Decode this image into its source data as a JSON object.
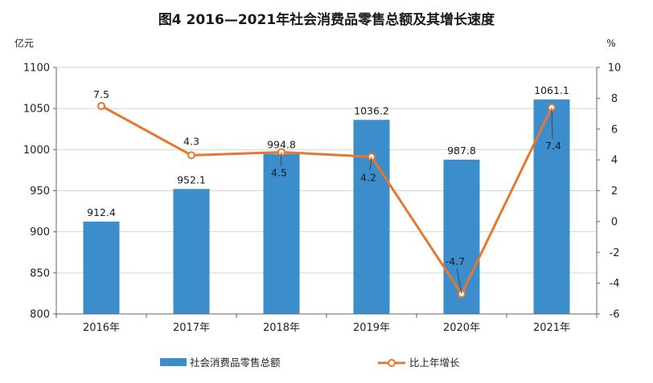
{
  "chart_data": {
    "type": "bar+line",
    "title": "图4  2016—2021年社会消费品零售总额及其增长速度",
    "categories": [
      "2016年",
      "2017年",
      "2018年",
      "2019年",
      "2020年",
      "2021年"
    ],
    "left_axis": {
      "unit": "亿元",
      "ylim": [
        800,
        1100
      ],
      "ticks": [
        800,
        850,
        900,
        950,
        1000,
        1050,
        1100
      ]
    },
    "right_axis": {
      "unit": "%",
      "ylim": [
        -6,
        10
      ],
      "ticks": [
        -6,
        -4,
        -2,
        0,
        2,
        4,
        6,
        8,
        10
      ]
    },
    "series": [
      {
        "name": "社会消费品零售总额",
        "kind": "bar",
        "axis": "left",
        "color": "#3b8ecb",
        "values": [
          912.4,
          952.1,
          994.8,
          1036.2,
          987.8,
          1061.1
        ],
        "labels": [
          "912.4",
          "952.1",
          "994.8",
          "1036.2",
          "987.8",
          "1061.1"
        ]
      },
      {
        "name": "比上年增长",
        "kind": "line",
        "axis": "right",
        "color": "#e8772e",
        "values": [
          7.5,
          4.3,
          4.5,
          4.2,
          -4.7,
          7.4
        ],
        "labels": [
          "7.5",
          "4.3",
          "4.5",
          "4.2",
          "-4.7",
          "7.4"
        ]
      }
    ],
    "grid": true,
    "legend": "bottom"
  }
}
